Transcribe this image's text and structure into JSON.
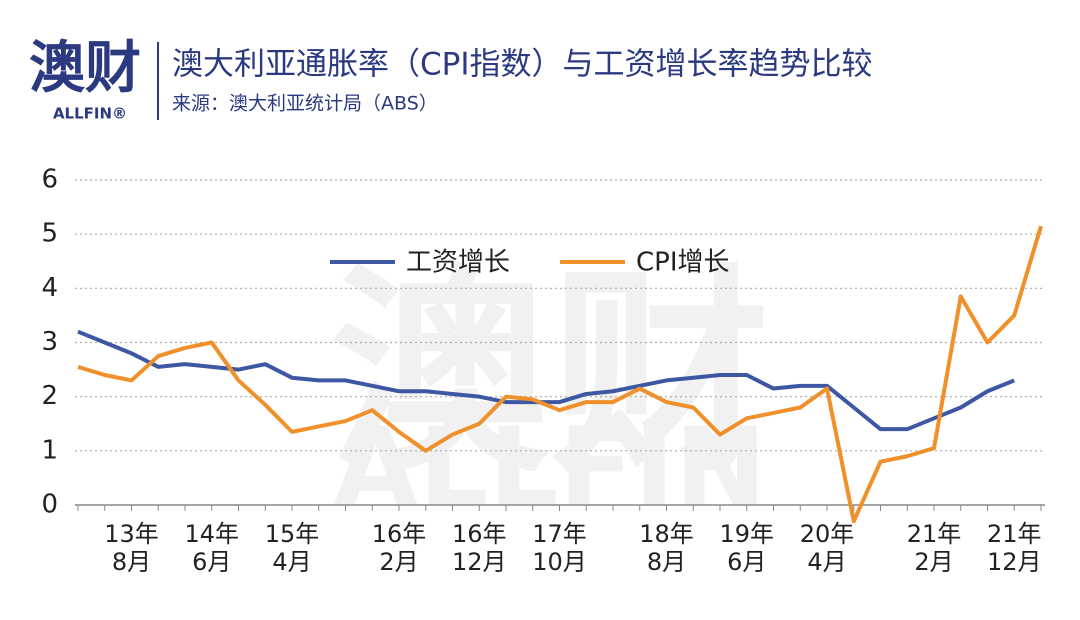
{
  "logo": {
    "main": "澳财",
    "sub": "ALLFIN®"
  },
  "watermark": {
    "main": "澳财",
    "sub": "ALLFIN"
  },
  "chart_data": {
    "type": "line",
    "title": "澳大利亚通胀率（CPI指数）与工资增长率趋势比较",
    "subtitle": "来源：澳大利亚统计局（ABS）",
    "categories": [
      null,
      null,
      "13年8月",
      null,
      null,
      "14年6月",
      null,
      null,
      "15年4月",
      null,
      null,
      null,
      "16年2月",
      null,
      null,
      "16年12月",
      null,
      null,
      "17年10月",
      null,
      null,
      null,
      "18年8月",
      null,
      null,
      "19年6月",
      null,
      null,
      "20年4月",
      null,
      null,
      null,
      "21年2月",
      null,
      null,
      "21年12月",
      null
    ],
    "series": [
      {
        "name": "工资增长",
        "color": "#3d57a3",
        "values": [
          3.2,
          3.0,
          2.8,
          2.55,
          2.6,
          2.55,
          2.5,
          2.6,
          2.35,
          2.3,
          2.3,
          2.2,
          2.1,
          2.1,
          2.05,
          2.0,
          1.9,
          1.9,
          1.9,
          2.05,
          2.1,
          2.2,
          2.3,
          2.35,
          2.4,
          2.4,
          2.15,
          2.2,
          2.2,
          1.8,
          1.4,
          1.4,
          1.6,
          1.8,
          2.1,
          2.3,
          null
        ]
      },
      {
        "name": "CPI增长",
        "color": "#f0902a",
        "values": [
          2.55,
          2.4,
          2.3,
          2.75,
          2.9,
          3.0,
          2.3,
          1.85,
          1.35,
          1.45,
          1.55,
          1.75,
          1.35,
          1.0,
          1.3,
          1.5,
          2.0,
          1.95,
          1.75,
          1.9,
          1.9,
          2.15,
          1.9,
          1.8,
          1.3,
          1.6,
          1.7,
          1.8,
          2.15,
          -0.3,
          0.8,
          0.9,
          1.05,
          3.85,
          3.0,
          3.5,
          5.15
        ]
      }
    ],
    "ylim": [
      0,
      6
    ],
    "yticks": [
      0,
      1,
      2,
      3,
      4,
      5,
      6
    ],
    "grid": true
  }
}
